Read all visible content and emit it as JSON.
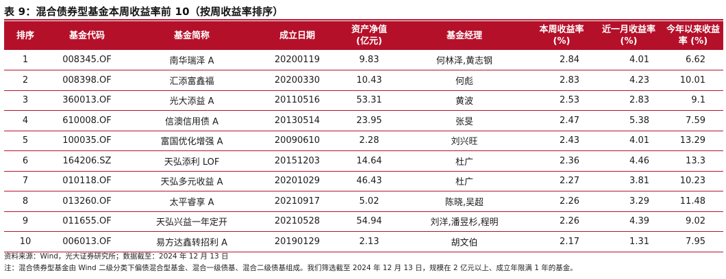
{
  "title": "表 9：混合债券型基金本周收益率前 10（按周收益率排序）",
  "headers": {
    "rank": "排序",
    "code": "基金代码",
    "name": "基金简称",
    "date": "成立日期",
    "nav_l1": "资产净值",
    "nav_l2": "(亿元)",
    "manager": "基金经理",
    "week_l1": "本周收益率",
    "week_l2": "(%)",
    "month_l1": "近一月收益率",
    "month_l2": "(%)",
    "ytd_l1": "今年以来收益",
    "ytd_l2": "率 (%)"
  },
  "rows": [
    {
      "rank": "1",
      "code": "008345.OF",
      "name": "南华瑞泽 A",
      "date": "20200119",
      "nav": "9.83",
      "manager": "何林泽,黄志钢",
      "week": "2.84",
      "month": "4.01",
      "ytd": "6.62"
    },
    {
      "rank": "2",
      "code": "008398.OF",
      "name": "汇添富鑫福",
      "date": "20200330",
      "nav": "10.43",
      "manager": "何彪",
      "week": "2.83",
      "month": "4.23",
      "ytd": "10.01"
    },
    {
      "rank": "3",
      "code": "360013.OF",
      "name": "光大添益 A",
      "date": "20110516",
      "nav": "53.31",
      "manager": "黄波",
      "week": "2.53",
      "month": "2.83",
      "ytd": "9.1"
    },
    {
      "rank": "4",
      "code": "610008.OF",
      "name": "信澳信用债 A",
      "date": "20130514",
      "nav": "23.95",
      "manager": "张旻",
      "week": "2.47",
      "month": "5.38",
      "ytd": "7.59"
    },
    {
      "rank": "5",
      "code": "100035.OF",
      "name": "富国优化增强 A",
      "date": "20090610",
      "nav": "2.28",
      "manager": "刘兴旺",
      "week": "2.43",
      "month": "4.01",
      "ytd": "13.29"
    },
    {
      "rank": "6",
      "code": "164206.SZ",
      "name": "天弘添利 LOF",
      "date": "20151203",
      "nav": "14.64",
      "manager": "杜广",
      "week": "2.36",
      "month": "4.46",
      "ytd": "13.3"
    },
    {
      "rank": "7",
      "code": "010118.OF",
      "name": "天弘多元收益 A",
      "date": "20201029",
      "nav": "46.43",
      "manager": "杜广",
      "week": "2.27",
      "month": "3.81",
      "ytd": "10.23"
    },
    {
      "rank": "8",
      "code": "013260.OF",
      "name": "太平睿享 A",
      "date": "20210917",
      "nav": "5.02",
      "manager": "陈晓,吴超",
      "week": "2.26",
      "month": "3.29",
      "ytd": "11.48"
    },
    {
      "rank": "9",
      "code": "011655.OF",
      "name": "天弘兴益一年定开",
      "date": "20210528",
      "nav": "54.94",
      "manager": "刘洋,潘昱杉,程明",
      "week": "2.26",
      "month": "4.39",
      "ytd": "9.02"
    },
    {
      "rank": "10",
      "code": "006013.OF",
      "name": "易方达鑫转招利 A",
      "date": "20190129",
      "nav": "2.13",
      "manager": "胡文伯",
      "week": "2.17",
      "month": "1.31",
      "ytd": "7.95"
    }
  ],
  "source": "资料来源：Wind，光大证券研究所；数据截至：2024 年 12 月 13 日",
  "note": "注：混合债券型基金由 Wind 二级分类下偏债混合型基金、混合一级债基、混合二级债基组成。我们筛选截至 2024 年 12 月 13 日，规模在 2 亿元以上、成立年限满 1 年的基金。",
  "colors": {
    "accent": "#b5102a",
    "header_text": "#ffffff"
  }
}
